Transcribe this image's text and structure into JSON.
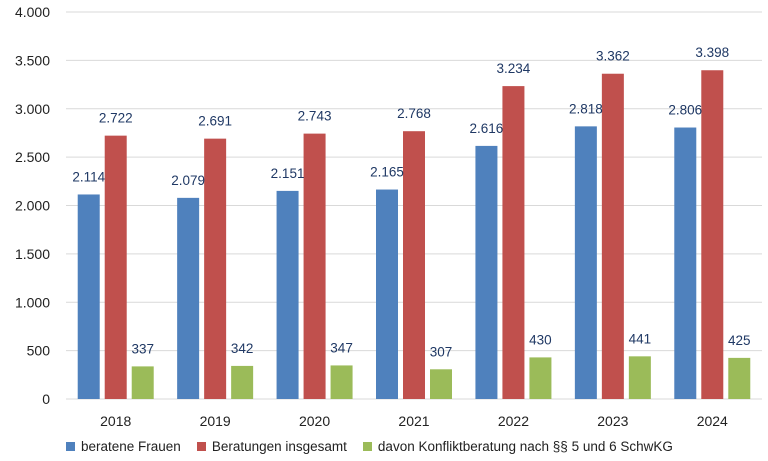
{
  "chart_data": {
    "type": "bar",
    "categories": [
      "2018",
      "2019",
      "2020",
      "2021",
      "2022",
      "2023",
      "2024"
    ],
    "series": [
      {
        "name": "beratene Frauen",
        "color": "#4f81bd",
        "values": [
          2114,
          2079,
          2151,
          2165,
          2616,
          2818,
          2806
        ],
        "labels": [
          "2.114",
          "2.079",
          "2.151",
          "2.165",
          "2.616",
          "2.818",
          "2.806"
        ]
      },
      {
        "name": "Beratungen insgesamt",
        "color": "#c0504d",
        "values": [
          2722,
          2691,
          2743,
          2768,
          3234,
          3362,
          3398
        ],
        "labels": [
          "2.722",
          "2.691",
          "2.743",
          "2.768",
          "3.234",
          "3.362",
          "3.398"
        ]
      },
      {
        "name": "davon Konfliktberatung nach §§ 5 und 6 SchwKG",
        "color": "#9bbb59",
        "values": [
          337,
          342,
          347,
          307,
          430,
          441,
          425
        ],
        "labels": [
          "337",
          "342",
          "347",
          "307",
          "430",
          "441",
          "425"
        ]
      }
    ],
    "yticks": [
      0,
      500,
      1000,
      1500,
      2000,
      2500,
      3000,
      3500,
      4000
    ],
    "ytick_labels": [
      "0",
      "500",
      "1.000",
      "1.500",
      "2.000",
      "2.500",
      "3.000",
      "3.500",
      "4.000"
    ],
    "ylim": [
      0,
      4000
    ],
    "grid": true,
    "legend_position": "bottom"
  }
}
